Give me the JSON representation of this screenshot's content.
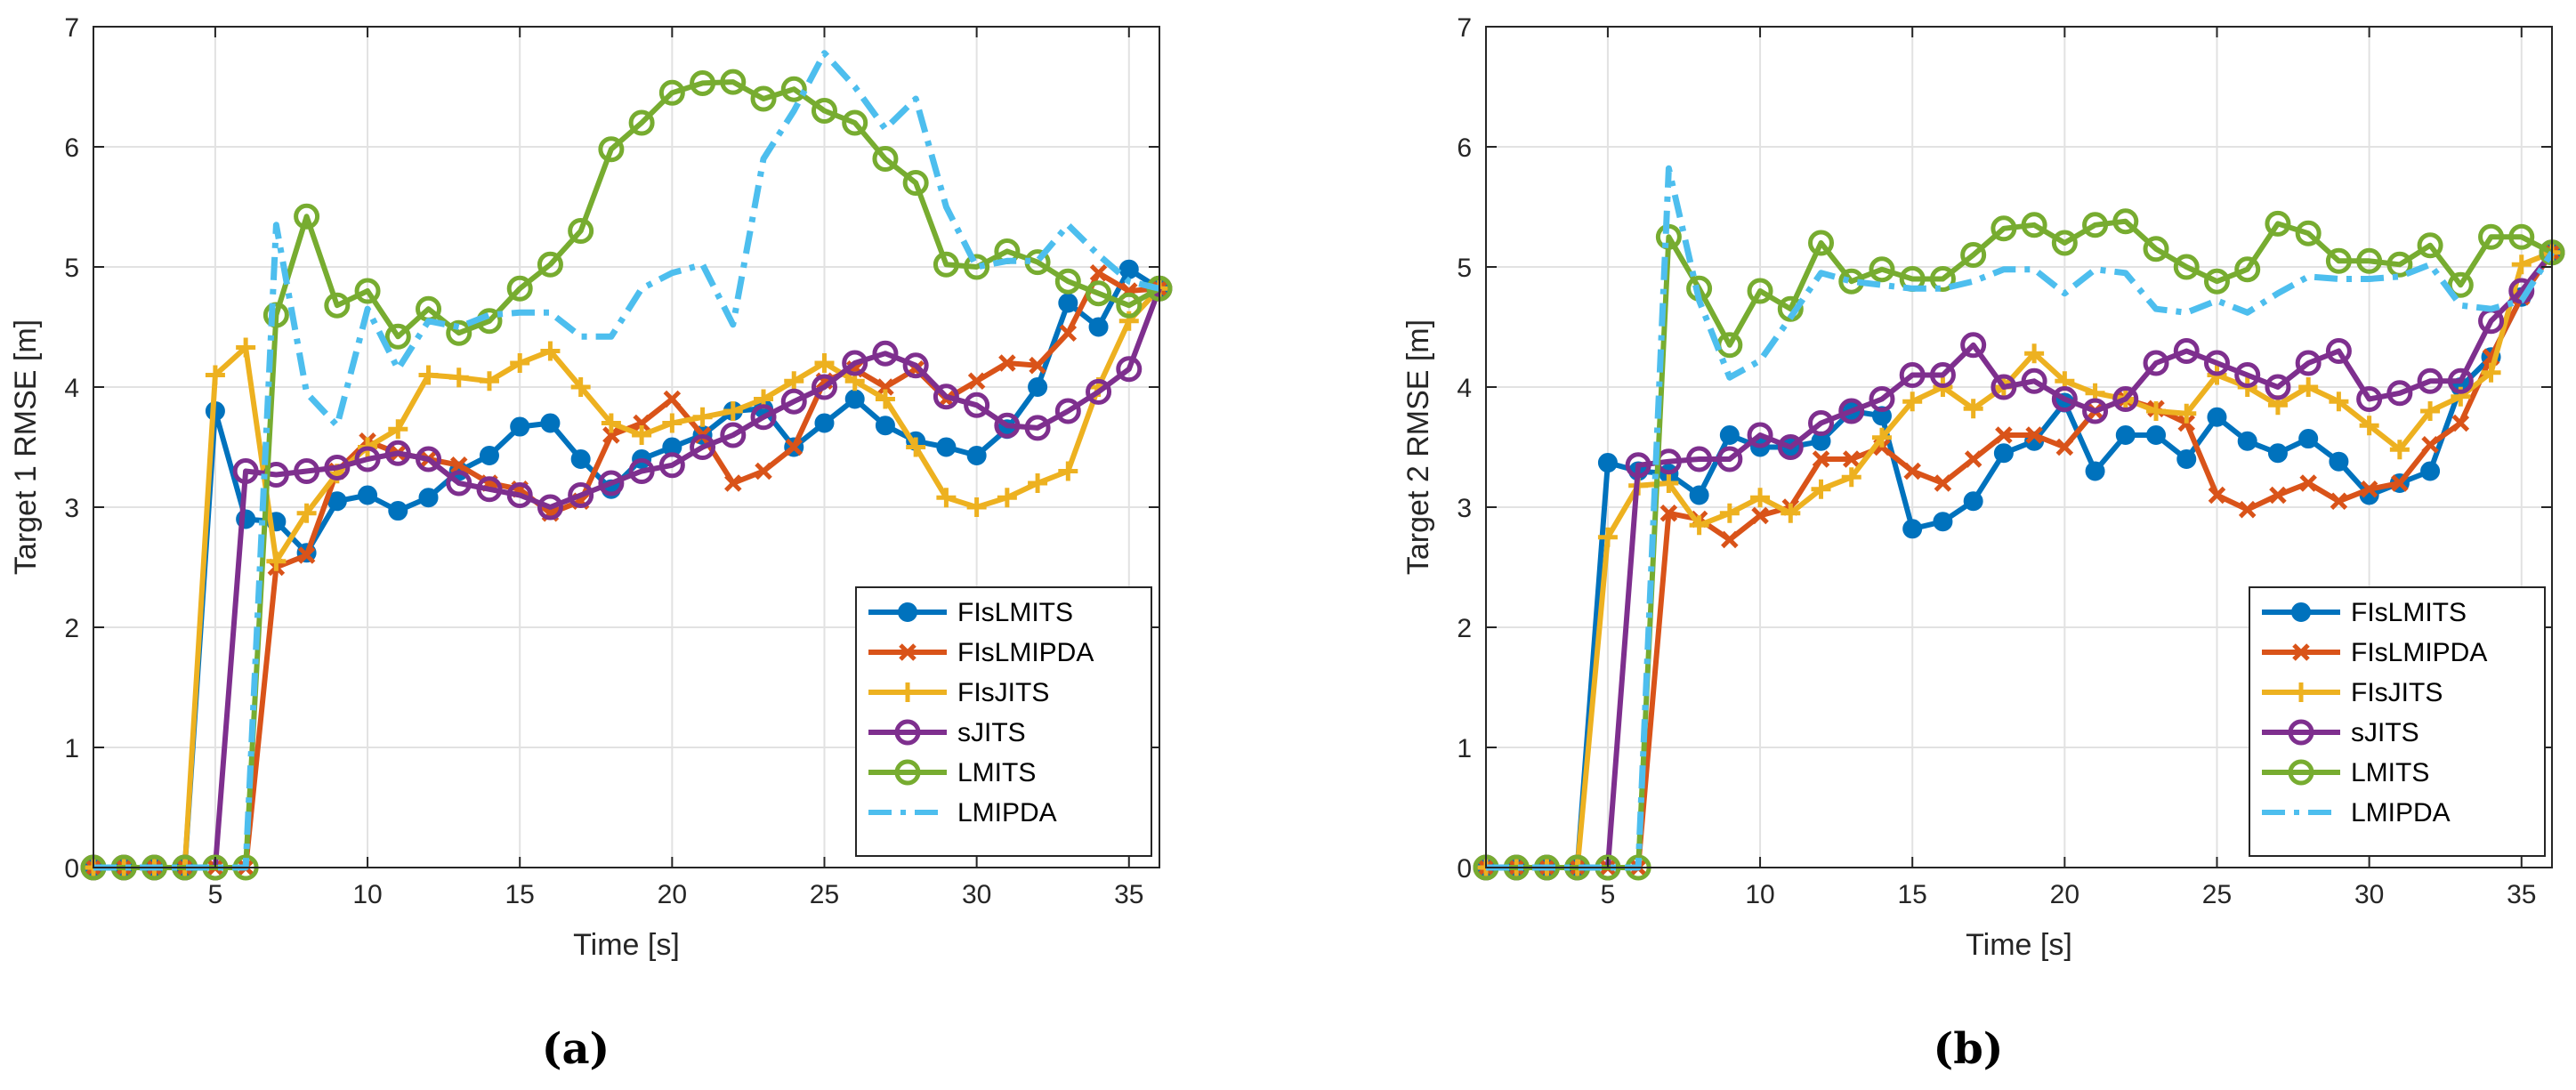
{
  "figure": {
    "panels": [
      "(a)",
      "(b)"
    ]
  },
  "chart_data": [
    {
      "type": "line",
      "panel": "(a)",
      "title": "",
      "xlabel": "Time [s]",
      "ylabel": "Target 1 RMSE [m]",
      "xlim": [
        1,
        36
      ],
      "ylim": [
        0,
        7
      ],
      "xticks": [
        5,
        10,
        15,
        20,
        25,
        30,
        35
      ],
      "yticks": [
        0,
        1,
        2,
        3,
        4,
        5,
        6,
        7
      ],
      "grid": true,
      "legend_position": "bottom-right",
      "x": [
        1,
        2,
        3,
        4,
        5,
        6,
        7,
        8,
        9,
        10,
        11,
        12,
        13,
        14,
        15,
        16,
        17,
        18,
        19,
        20,
        21,
        22,
        23,
        24,
        25,
        26,
        27,
        28,
        29,
        30,
        31,
        32,
        33,
        34,
        35,
        36
      ],
      "series": [
        {
          "name": "FIsLMITS",
          "color": "#0072BD",
          "marker": "circle",
          "dash": "solid",
          "values": [
            0,
            0,
            0,
            0,
            3.8,
            2.9,
            2.88,
            2.62,
            3.05,
            3.1,
            2.97,
            3.08,
            3.3,
            3.43,
            3.67,
            3.7,
            3.4,
            3.15,
            3.4,
            3.5,
            3.6,
            3.8,
            3.82,
            3.5,
            3.7,
            3.9,
            3.68,
            3.55,
            3.5,
            3.43,
            3.65,
            4.0,
            4.7,
            4.5,
            4.98,
            4.82
          ]
        },
        {
          "name": "FIsLMIPDA",
          "color": "#D95319",
          "marker": "x",
          "dash": "solid",
          "values": [
            0,
            0,
            0,
            0,
            0,
            0,
            2.5,
            2.6,
            3.3,
            3.55,
            3.45,
            3.4,
            3.35,
            3.2,
            3.15,
            2.95,
            3.05,
            3.6,
            3.7,
            3.9,
            3.6,
            3.2,
            3.3,
            3.5,
            4.05,
            4.15,
            4.0,
            4.15,
            3.9,
            4.05,
            4.2,
            4.18,
            4.45,
            4.95,
            4.8,
            4.82
          ]
        },
        {
          "name": "FIsJITS",
          "color": "#EDB120",
          "marker": "plus",
          "dash": "solid",
          "values": [
            0,
            0,
            0,
            0,
            4.1,
            4.33,
            2.55,
            2.95,
            3.28,
            3.5,
            3.65,
            4.1,
            4.08,
            4.05,
            4.2,
            4.3,
            4.0,
            3.7,
            3.6,
            3.7,
            3.75,
            3.8,
            3.9,
            4.05,
            4.2,
            4.05,
            3.9,
            3.5,
            3.08,
            3.0,
            3.08,
            3.2,
            3.3,
            4.0,
            4.55,
            4.82
          ]
        },
        {
          "name": "sJITS",
          "color": "#7E2F8E",
          "marker": "circle-open",
          "dash": "solid",
          "values": [
            0,
            0,
            0,
            0,
            0,
            3.3,
            3.27,
            3.3,
            3.33,
            3.4,
            3.45,
            3.4,
            3.2,
            3.15,
            3.1,
            3.0,
            3.1,
            3.2,
            3.3,
            3.35,
            3.5,
            3.6,
            3.75,
            3.88,
            4.0,
            4.2,
            4.28,
            4.18,
            3.92,
            3.85,
            3.68,
            3.66,
            3.8,
            3.96,
            4.15,
            4.82
          ]
        },
        {
          "name": "LMITS",
          "color": "#77AC30",
          "marker": "circle-open",
          "dash": "solid",
          "values": [
            0,
            0,
            0,
            0,
            0,
            0,
            4.6,
            5.42,
            4.68,
            4.8,
            4.42,
            4.65,
            4.45,
            4.55,
            4.82,
            5.02,
            5.3,
            5.98,
            6.2,
            6.45,
            6.53,
            6.54,
            6.4,
            6.48,
            6.3,
            6.2,
            5.9,
            5.7,
            5.02,
            5.0,
            5.13,
            5.04,
            4.88,
            4.78,
            4.68,
            4.82
          ]
        },
        {
          "name": "LMIPDA",
          "color": "#4DBEEE",
          "marker": "none",
          "dash": "dashdot",
          "values": [
            0,
            0,
            0,
            0,
            0,
            0,
            5.35,
            3.95,
            3.68,
            4.65,
            4.15,
            4.55,
            4.5,
            4.6,
            4.62,
            4.62,
            4.42,
            4.42,
            4.82,
            4.95,
            5.02,
            4.52,
            5.9,
            6.3,
            6.78,
            6.5,
            6.15,
            6.4,
            5.5,
            5.0,
            5.05,
            5.05,
            5.35,
            5.1,
            4.88,
            4.82
          ]
        }
      ]
    },
    {
      "type": "line",
      "panel": "(b)",
      "title": "",
      "xlabel": "Time [s]",
      "ylabel": "Target 2 RMSE [m]",
      "xlim": [
        1,
        36
      ],
      "ylim": [
        0,
        7
      ],
      "xticks": [
        5,
        10,
        15,
        20,
        25,
        30,
        35
      ],
      "yticks": [
        0,
        1,
        2,
        3,
        4,
        5,
        6,
        7
      ],
      "grid": true,
      "legend_position": "bottom-right",
      "x": [
        1,
        2,
        3,
        4,
        5,
        6,
        7,
        8,
        9,
        10,
        11,
        12,
        13,
        14,
        15,
        16,
        17,
        18,
        19,
        20,
        21,
        22,
        23,
        24,
        25,
        26,
        27,
        28,
        29,
        30,
        31,
        32,
        33,
        34,
        35,
        36
      ],
      "series": [
        {
          "name": "FIsLMITS",
          "color": "#0072BD",
          "marker": "circle",
          "dash": "solid",
          "values": [
            0,
            0,
            0,
            0,
            3.37,
            3.3,
            3.28,
            3.1,
            3.6,
            3.5,
            3.5,
            3.55,
            3.8,
            3.76,
            2.82,
            2.88,
            3.05,
            3.45,
            3.55,
            3.87,
            3.3,
            3.6,
            3.6,
            3.4,
            3.75,
            3.55,
            3.45,
            3.57,
            3.38,
            3.1,
            3.2,
            3.3,
            4.0,
            4.25,
            4.75,
            5.12
          ]
        },
        {
          "name": "FIsLMIPDA",
          "color": "#D95319",
          "marker": "x",
          "dash": "solid",
          "values": [
            0,
            0,
            0,
            0,
            0,
            0,
            2.95,
            2.9,
            2.73,
            2.93,
            3.0,
            3.4,
            3.4,
            3.5,
            3.3,
            3.2,
            3.4,
            3.6,
            3.6,
            3.5,
            3.8,
            3.9,
            3.82,
            3.7,
            3.1,
            2.98,
            3.1,
            3.2,
            3.05,
            3.15,
            3.2,
            3.52,
            3.7,
            4.25,
            4.75,
            5.12
          ]
        },
        {
          "name": "FIsJITS",
          "color": "#EDB120",
          "marker": "plus",
          "dash": "solid",
          "values": [
            0,
            0,
            0,
            0,
            2.75,
            3.18,
            3.2,
            2.85,
            2.95,
            3.08,
            2.95,
            3.15,
            3.25,
            3.58,
            3.88,
            4.0,
            3.82,
            4.0,
            4.28,
            4.05,
            3.95,
            3.9,
            3.8,
            3.78,
            4.1,
            4.0,
            3.85,
            4.0,
            3.88,
            3.68,
            3.48,
            3.8,
            3.92,
            4.12,
            5.02,
            5.12
          ]
        },
        {
          "name": "sJITS",
          "color": "#7E2F8E",
          "marker": "circle-open",
          "dash": "solid",
          "values": [
            0,
            0,
            0,
            0,
            0,
            3.35,
            3.38,
            3.4,
            3.4,
            3.6,
            3.5,
            3.7,
            3.8,
            3.9,
            4.1,
            4.1,
            4.35,
            4.0,
            4.05,
            3.9,
            3.8,
            3.9,
            4.2,
            4.3,
            4.2,
            4.1,
            4.0,
            4.2,
            4.3,
            3.9,
            3.95,
            4.05,
            4.05,
            4.55,
            4.8,
            5.12
          ]
        },
        {
          "name": "LMITS",
          "color": "#77AC30",
          "marker": "circle-open",
          "dash": "solid",
          "values": [
            0,
            0,
            0,
            0,
            0,
            0,
            5.25,
            4.82,
            4.35,
            4.8,
            4.65,
            5.2,
            4.88,
            4.98,
            4.9,
            4.9,
            5.1,
            5.32,
            5.35,
            5.2,
            5.35,
            5.38,
            5.15,
            5.0,
            4.88,
            4.98,
            5.36,
            5.28,
            5.05,
            5.05,
            5.02,
            5.18,
            4.85,
            5.25,
            5.25,
            5.12
          ]
        },
        {
          "name": "LMIPDA",
          "color": "#4DBEEE",
          "marker": "none",
          "dash": "dashdot",
          "values": [
            0,
            0,
            0,
            0,
            0,
            0,
            5.82,
            4.72,
            4.08,
            4.22,
            4.58,
            4.95,
            4.88,
            4.85,
            4.82,
            4.82,
            4.88,
            4.98,
            4.98,
            4.78,
            4.98,
            4.95,
            4.65,
            4.62,
            4.72,
            4.62,
            4.78,
            4.92,
            4.9,
            4.9,
            4.92,
            5.02,
            4.68,
            4.65,
            4.72,
            5.12
          ]
        }
      ]
    }
  ]
}
